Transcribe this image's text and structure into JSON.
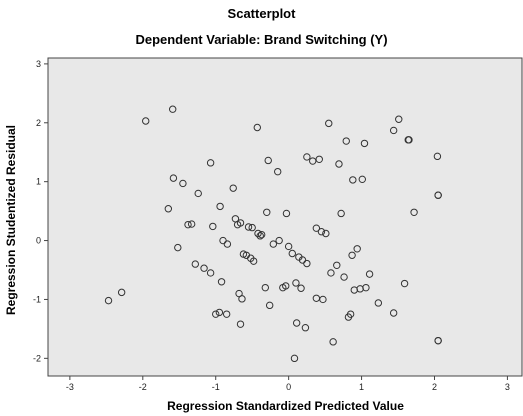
{
  "chart_data": {
    "type": "scatter",
    "title": "Scatterplot",
    "subtitle": "Dependent Variable: Brand Switching (Y)",
    "xlabel": "Regression Standardized Predicted Value",
    "ylabel": "Regression Studentized Residual",
    "xlim": [
      -3.3,
      3.2
    ],
    "ylim": [
      -2.3,
      3.1
    ],
    "xticks": [
      -3,
      -2,
      -1,
      0,
      1,
      2,
      3
    ],
    "yticks": [
      -2,
      -1,
      0,
      1,
      2,
      3
    ],
    "grid": false,
    "point_color": "#333333",
    "plot_background": "#e8e8e8",
    "points": [
      [
        -2.47,
        -1.02
      ],
      [
        -2.29,
        -0.88
      ],
      [
        -1.96,
        2.03
      ],
      [
        -1.59,
        2.23
      ],
      [
        -1.65,
        0.54
      ],
      [
        -1.58,
        1.06
      ],
      [
        -1.52,
        -0.12
      ],
      [
        -1.45,
        0.97
      ],
      [
        -1.38,
        0.27
      ],
      [
        -1.33,
        0.28
      ],
      [
        -1.28,
        -0.4
      ],
      [
        -1.24,
        0.8
      ],
      [
        -1.16,
        -0.47
      ],
      [
        -1.07,
        1.32
      ],
      [
        -1.07,
        -0.55
      ],
      [
        -1.04,
        0.24
      ],
      [
        -1.0,
        -1.25
      ],
      [
        -0.95,
        -1.22
      ],
      [
        -0.94,
        0.58
      ],
      [
        -0.92,
        -0.7
      ],
      [
        -0.9,
        0.0
      ],
      [
        -0.85,
        -1.25
      ],
      [
        -0.84,
        -0.06
      ],
      [
        -0.76,
        0.89
      ],
      [
        -0.73,
        0.37
      ],
      [
        -0.7,
        0.27
      ],
      [
        -0.68,
        -0.9
      ],
      [
        -0.66,
        0.3
      ],
      [
        -0.64,
        -0.99
      ],
      [
        -0.66,
        -1.42
      ],
      [
        -0.62,
        -0.23
      ],
      [
        -0.58,
        -0.25
      ],
      [
        -0.55,
        0.23
      ],
      [
        -0.52,
        -0.3
      ],
      [
        -0.5,
        0.22
      ],
      [
        -0.48,
        -0.35
      ],
      [
        -0.43,
        1.92
      ],
      [
        -0.42,
        0.12
      ],
      [
        -0.39,
        0.08
      ],
      [
        -0.37,
        0.1
      ],
      [
        -0.32,
        -0.8
      ],
      [
        -0.3,
        0.48
      ],
      [
        -0.28,
        1.36
      ],
      [
        -0.26,
        -1.1
      ],
      [
        -0.21,
        -0.06
      ],
      [
        -0.15,
        1.17
      ],
      [
        -0.13,
        0.0
      ],
      [
        -0.08,
        -0.8
      ],
      [
        -0.04,
        -0.77
      ],
      [
        -0.03,
        0.46
      ],
      [
        0.0,
        -0.1
      ],
      [
        0.05,
        -0.22
      ],
      [
        0.08,
        -2.0
      ],
      [
        0.1,
        -0.72
      ],
      [
        0.11,
        -1.4
      ],
      [
        0.14,
        -0.28
      ],
      [
        0.17,
        -0.81
      ],
      [
        0.19,
        -0.33
      ],
      [
        0.23,
        -1.48
      ],
      [
        0.25,
        1.42
      ],
      [
        0.25,
        -0.39
      ],
      [
        0.33,
        1.35
      ],
      [
        0.38,
        0.21
      ],
      [
        0.38,
        -0.98
      ],
      [
        0.42,
        1.38
      ],
      [
        0.45,
        0.15
      ],
      [
        0.47,
        -1.0
      ],
      [
        0.51,
        0.12
      ],
      [
        0.55,
        1.99
      ],
      [
        0.58,
        -0.55
      ],
      [
        0.61,
        -1.72
      ],
      [
        0.66,
        -0.42
      ],
      [
        0.69,
        1.3
      ],
      [
        0.72,
        0.46
      ],
      [
        0.76,
        -0.62
      ],
      [
        0.79,
        1.69
      ],
      [
        0.82,
        -1.3
      ],
      [
        0.85,
        -1.25
      ],
      [
        0.87,
        -0.25
      ],
      [
        0.88,
        1.03
      ],
      [
        0.9,
        -0.84
      ],
      [
        0.94,
        -0.14
      ],
      [
        0.98,
        -0.82
      ],
      [
        1.01,
        1.04
      ],
      [
        1.04,
        1.65
      ],
      [
        1.06,
        -0.8
      ],
      [
        1.11,
        -0.57
      ],
      [
        1.23,
        -1.06
      ],
      [
        1.44,
        1.87
      ],
      [
        1.44,
        -1.23
      ],
      [
        1.51,
        2.06
      ],
      [
        1.59,
        -0.73
      ],
      [
        1.64,
        1.71
      ],
      [
        1.65,
        1.71
      ],
      [
        1.72,
        0.48
      ],
      [
        2.04,
        1.43
      ],
      [
        2.05,
        0.77
      ],
      [
        2.05,
        0.77
      ],
      [
        2.05,
        -1.7
      ],
      [
        2.05,
        -1.7
      ]
    ]
  }
}
